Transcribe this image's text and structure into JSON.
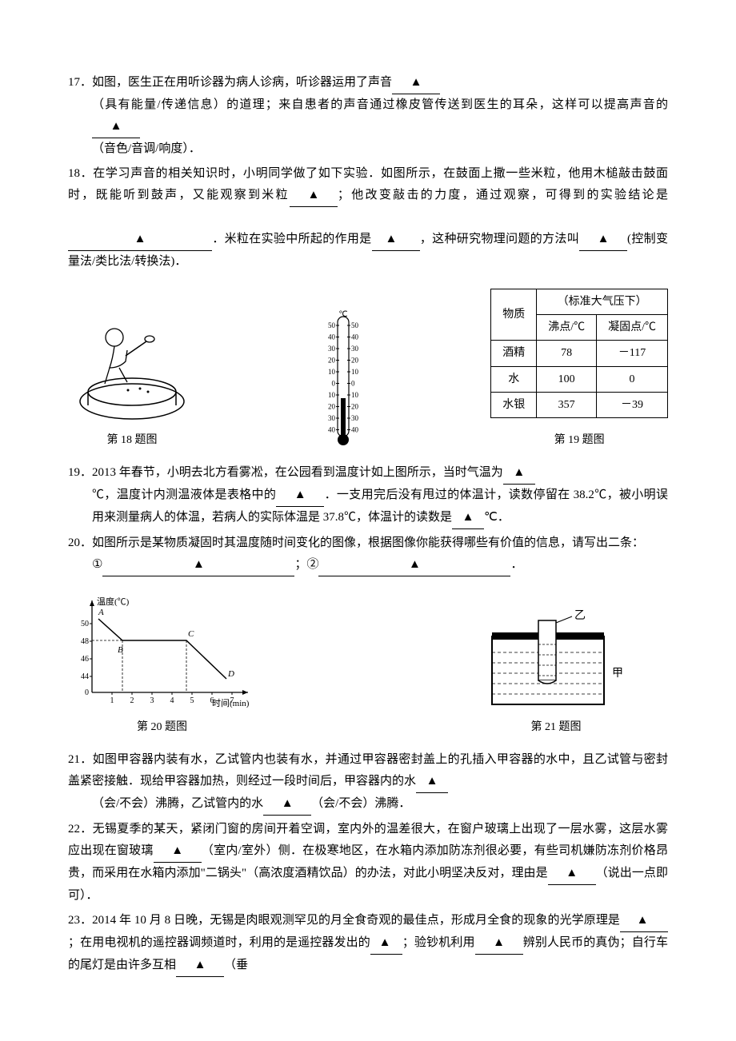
{
  "q17": {
    "num": "17．",
    "text_a": "如图，医生正在用听诊器为病人诊病，听诊器运用了声音",
    "text_b": "（具有能量/传递信息）的道理；来自患者的声音通过橡皮管传送到医生的耳朵，这样可以提高声音的",
    "text_c": "（音色/音调/响度）．",
    "blank_marker": "▲"
  },
  "q18": {
    "num": "18．",
    "text_a": "在学习声音的相关知识时，小明同学做了如下实验．如图所示，在鼓面上撒一些米粒，他用木槌敲击鼓面时，既能听到鼓声，又能观察到米粒",
    "text_b": "；他改变敲击的力度，通过观察，可得到的实验结论是",
    "text_c": "．米粒在实验中所起的作用是",
    "text_d": "，这种研究物理问题的方法叫",
    "text_e": "(控制变量法/类比法/转换法)．",
    "fig_label": "第 18 题图",
    "blank_marker": "▲"
  },
  "q19": {
    "num": "19．",
    "text_a": "2013 年春节，小明去北方看雾凇，在公园看到温度计如上图所示，当时气温为",
    "text_b": "℃，温度计内测温液体是表格中的",
    "text_c": "．一支用完后没有甩过的体温计，读数停留在 38.2℃，被小明误用来测量病人的体温，若病人的实际体温是 37.8℃，体温计的读数是",
    "text_d": "℃．",
    "fig_label": "第 19 题图",
    "blank_marker": "▲",
    "thermometer": {
      "ticks": [
        "50",
        "40",
        "30",
        "20",
        "10",
        "0",
        "10",
        "20",
        "30",
        "40"
      ],
      "top_label": "℃",
      "reading": -20
    },
    "table": {
      "header1": "物质",
      "header2": "（标准大气压下）",
      "sub1": "沸点/℃",
      "sub2": "凝固点/℃",
      "rows": [
        {
          "name": "酒精",
          "bp": "78",
          "fp": "－117"
        },
        {
          "name": "水",
          "bp": "100",
          "fp": "0"
        },
        {
          "name": "水银",
          "bp": "357",
          "fp": "－39"
        }
      ]
    }
  },
  "q20": {
    "num": "20．",
    "text_a": "如图所示是某物质凝固时其温度随时间变化的图像，根据图像你能获得哪些有价值的信息，请写出二条：",
    "item1_label": "①",
    "item1_sep": "；",
    "item2_label": "②",
    "item2_end": "．",
    "fig_label": "第 20 题图",
    "blank_marker": "▲",
    "chart": {
      "ylabel": "温度(℃)",
      "xlabel": "时间(min)",
      "yticks": [
        "44",
        "46",
        "48",
        "50"
      ],
      "xticks": [
        "0",
        "1",
        "2",
        "3",
        "4",
        "5",
        "6",
        "7"
      ],
      "points": {
        "A": "A",
        "B": "B",
        "C": "C",
        "D": "D"
      }
    }
  },
  "q21": {
    "num": "21．",
    "text_a": "如图甲容器内装有水，乙试管内也装有水，并通过甲容器密封盖上的孔插入甲容器的水中，且乙试管与密封盖紧密接触．现给甲容器加热，则经过一段时间后，甲容器内的水",
    "text_b": "（会/不会）沸腾，乙试管内的水",
    "text_c": "（会/不会）沸腾．",
    "fig_label": "第 21 题图",
    "jia": "甲",
    "yi": "乙",
    "blank_marker": "▲"
  },
  "q22": {
    "num": "22．",
    "text_a": "无锡夏季的某天，紧闭门窗的房间开着空调，室内外的温差很大，在窗户玻璃上出现了一层水雾，这层水雾应出现在窗玻璃",
    "text_b": "（室内/室外）侧．在极寒地区，在水箱内添加防冻剂很必要，有些司机嫌防冻剂价格昂贵，而采用在水箱内添加\"二锅头\"（高浓度酒精饮品）的办法，对此小明坚决反对，理由是",
    "text_c": "（说出一点即可）．",
    "blank_marker": "▲"
  },
  "q23": {
    "num": "23．",
    "text_a": "2014 年 10 月 8 日晚，无锡是肉眼观测罕见的月全食奇观的最佳点，形成月全食的现象的光学原理是",
    "text_b": "；在用电视机的遥控器调频道时，利用的是遥控器发出的",
    "text_c": "；验钞机利用",
    "text_d": "辨别人民币的真伪；自行车的尾灯是由许多互相",
    "text_e": "（垂",
    "blank_marker": "▲"
  },
  "style": {
    "text_color": "#000000",
    "bg_color": "#ffffff",
    "font_size_body": 15,
    "font_size_label": 14,
    "line_height": 1.8
  }
}
